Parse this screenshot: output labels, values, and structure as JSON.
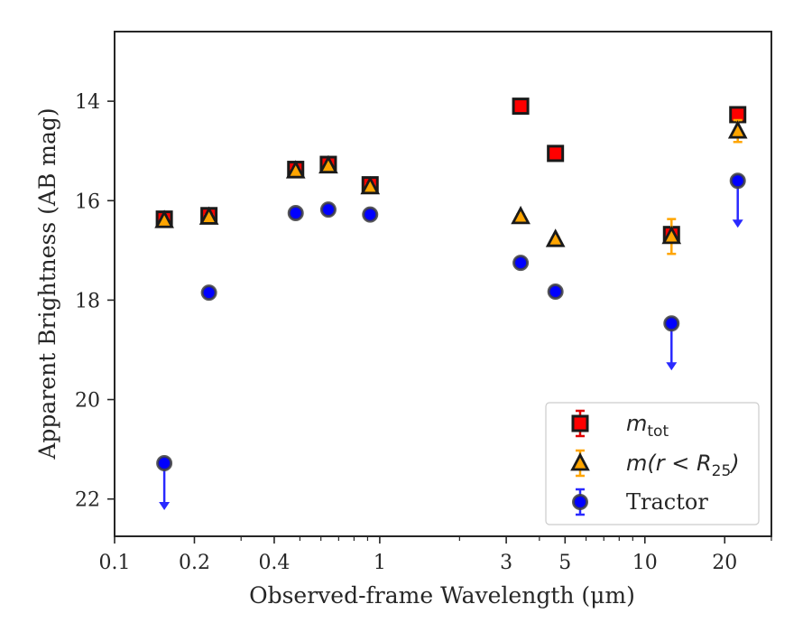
{
  "chart_data": {
    "type": "scatter",
    "xlabel": "Observed-frame Wavelength (μm)",
    "ylabel": "Apparent Brightness (AB mag)",
    "x_scale": "log",
    "xlim": [
      0.1,
      30
    ],
    "ylim": [
      22.75,
      12.6
    ],
    "y_inverted": true,
    "grid": false,
    "legend_position": "lower right",
    "x_ticks": [
      {
        "value": 0.1,
        "label": "0.1"
      },
      {
        "value": 0.2,
        "label": "0.2"
      },
      {
        "value": 0.4,
        "label": "0.4"
      },
      {
        "value": 1,
        "label": "1"
      },
      {
        "value": 3,
        "label": "3"
      },
      {
        "value": 5,
        "label": "5"
      },
      {
        "value": 10,
        "label": "10"
      },
      {
        "value": 20,
        "label": "20"
      }
    ],
    "y_ticks": [
      {
        "value": 14,
        "label": "14"
      },
      {
        "value": 16,
        "label": "16"
      },
      {
        "value": 18,
        "label": "18"
      },
      {
        "value": 20,
        "label": "20"
      },
      {
        "value": 22,
        "label": "22"
      }
    ],
    "series": [
      {
        "name": "m_tot",
        "legend_main": "m",
        "legend_sub": "tot",
        "marker": "square",
        "color": "#ff0000",
        "edge_color": "#1a1a1a",
        "errorbar_color": "#e00000",
        "points": [
          {
            "x": 0.154,
            "y": 16.37,
            "err": 0.05
          },
          {
            "x": 0.227,
            "y": 16.3,
            "err": 0.05
          },
          {
            "x": 0.482,
            "y": 15.37,
            "err": 0.05
          },
          {
            "x": 0.64,
            "y": 15.27,
            "err": 0.05
          },
          {
            "x": 0.92,
            "y": 15.68,
            "err": 0.05
          },
          {
            "x": 3.4,
            "y": 14.1,
            "err": 0.04
          },
          {
            "x": 4.6,
            "y": 15.05,
            "err": 0.04
          },
          {
            "x": 12.6,
            "y": 16.68,
            "err": 0.05
          },
          {
            "x": 22.4,
            "y": 14.27,
            "err": 0.05
          }
        ]
      },
      {
        "name": "m(r < R25)",
        "legend_math": "m(r < R",
        "legend_sub": "25",
        "legend_close": ")",
        "marker": "triangle",
        "color": "#ffa500",
        "edge_color": "#1a1a1a",
        "errorbar_color": "#ffa500",
        "points": [
          {
            "x": 0.154,
            "y": 16.4,
            "err": 0.04
          },
          {
            "x": 0.227,
            "y": 16.33,
            "err": 0.04
          },
          {
            "x": 0.482,
            "y": 15.4,
            "err": 0.04
          },
          {
            "x": 0.64,
            "y": 15.3,
            "err": 0.04
          },
          {
            "x": 0.92,
            "y": 15.72,
            "err": 0.04
          },
          {
            "x": 3.4,
            "y": 16.32,
            "err": 0.04
          },
          {
            "x": 4.6,
            "y": 16.78,
            "err": 0.04
          },
          {
            "x": 12.6,
            "y": 16.72,
            "err": 0.35
          },
          {
            "x": 22.4,
            "y": 14.6,
            "err": 0.22
          }
        ]
      },
      {
        "name": "Tractor",
        "legend_label": "Tractor",
        "marker": "circle",
        "color": "#0000ff",
        "edge_color": "#404040",
        "errorbar_color": "#2a2aff",
        "points": [
          {
            "x": 0.154,
            "y": 21.28,
            "err": 0.05,
            "upper_limit": true
          },
          {
            "x": 0.227,
            "y": 17.85,
            "err": 0.05
          },
          {
            "x": 0.482,
            "y": 16.25,
            "err": 0.05
          },
          {
            "x": 0.64,
            "y": 16.18,
            "err": 0.05
          },
          {
            "x": 0.92,
            "y": 16.28,
            "err": 0.05
          },
          {
            "x": 3.4,
            "y": 17.25,
            "err": 0.05
          },
          {
            "x": 4.6,
            "y": 17.83,
            "err": 0.05
          },
          {
            "x": 12.6,
            "y": 18.47,
            "err": 0.05,
            "upper_limit": true
          },
          {
            "x": 22.4,
            "y": 15.6,
            "err": 0.05,
            "upper_limit": true
          }
        ]
      }
    ]
  }
}
